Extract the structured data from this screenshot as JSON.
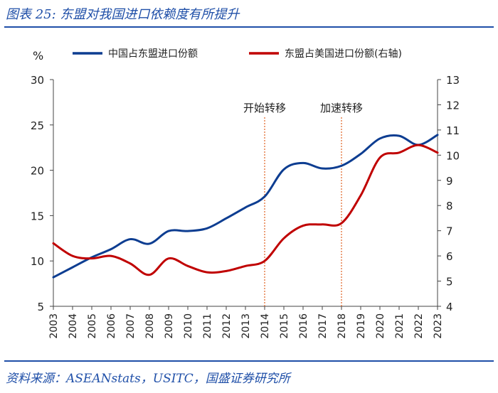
{
  "figure_title": "图表 25:  东盟对我国进口依赖度有所提升",
  "source": "资料来源：ASEANstats，USITC，国盛证券研究所",
  "chart_data": {
    "type": "line",
    "y_unit": "%",
    "x": [
      "2003",
      "2004",
      "2005",
      "2006",
      "2007",
      "2008",
      "2009",
      "2010",
      "2011",
      "2012",
      "2013",
      "2014",
      "2015",
      "2016",
      "2017",
      "2018",
      "2019",
      "2020",
      "2021",
      "2022",
      "2023"
    ],
    "series": [
      {
        "name": "中国占东盟进口份额",
        "axis": "left",
        "color": "#0d3d91",
        "values": [
          8.2,
          9.3,
          10.4,
          11.3,
          12.4,
          11.9,
          13.3,
          13.3,
          13.6,
          14.7,
          15.9,
          17.1,
          20.1,
          20.8,
          20.2,
          20.5,
          21.8,
          23.5,
          23.8,
          22.8,
          23.9
        ]
      },
      {
        "name": "东盟占美国进口份额(右轴)",
        "axis": "right",
        "color": "#c00000",
        "values": [
          6.5,
          6.0,
          5.9,
          6.0,
          5.7,
          5.25,
          5.9,
          5.6,
          5.35,
          5.4,
          5.6,
          5.8,
          6.7,
          7.2,
          7.25,
          7.3,
          8.4,
          9.9,
          10.1,
          10.4,
          10.1
        ]
      }
    ],
    "left_axis": {
      "min": 5,
      "max": 30,
      "ticks": [
        5,
        10,
        15,
        20,
        25,
        30
      ]
    },
    "right_axis": {
      "min": 4,
      "max": 13,
      "ticks": [
        4,
        5,
        6,
        7,
        8,
        9,
        10,
        11,
        12,
        13
      ]
    },
    "annotations": [
      {
        "x": "2014",
        "label": "开始转移",
        "color": "#e06020"
      },
      {
        "x": "2018",
        "label": "加速转移",
        "color": "#e06020"
      }
    ],
    "legend_position": "top",
    "grid": false
  }
}
